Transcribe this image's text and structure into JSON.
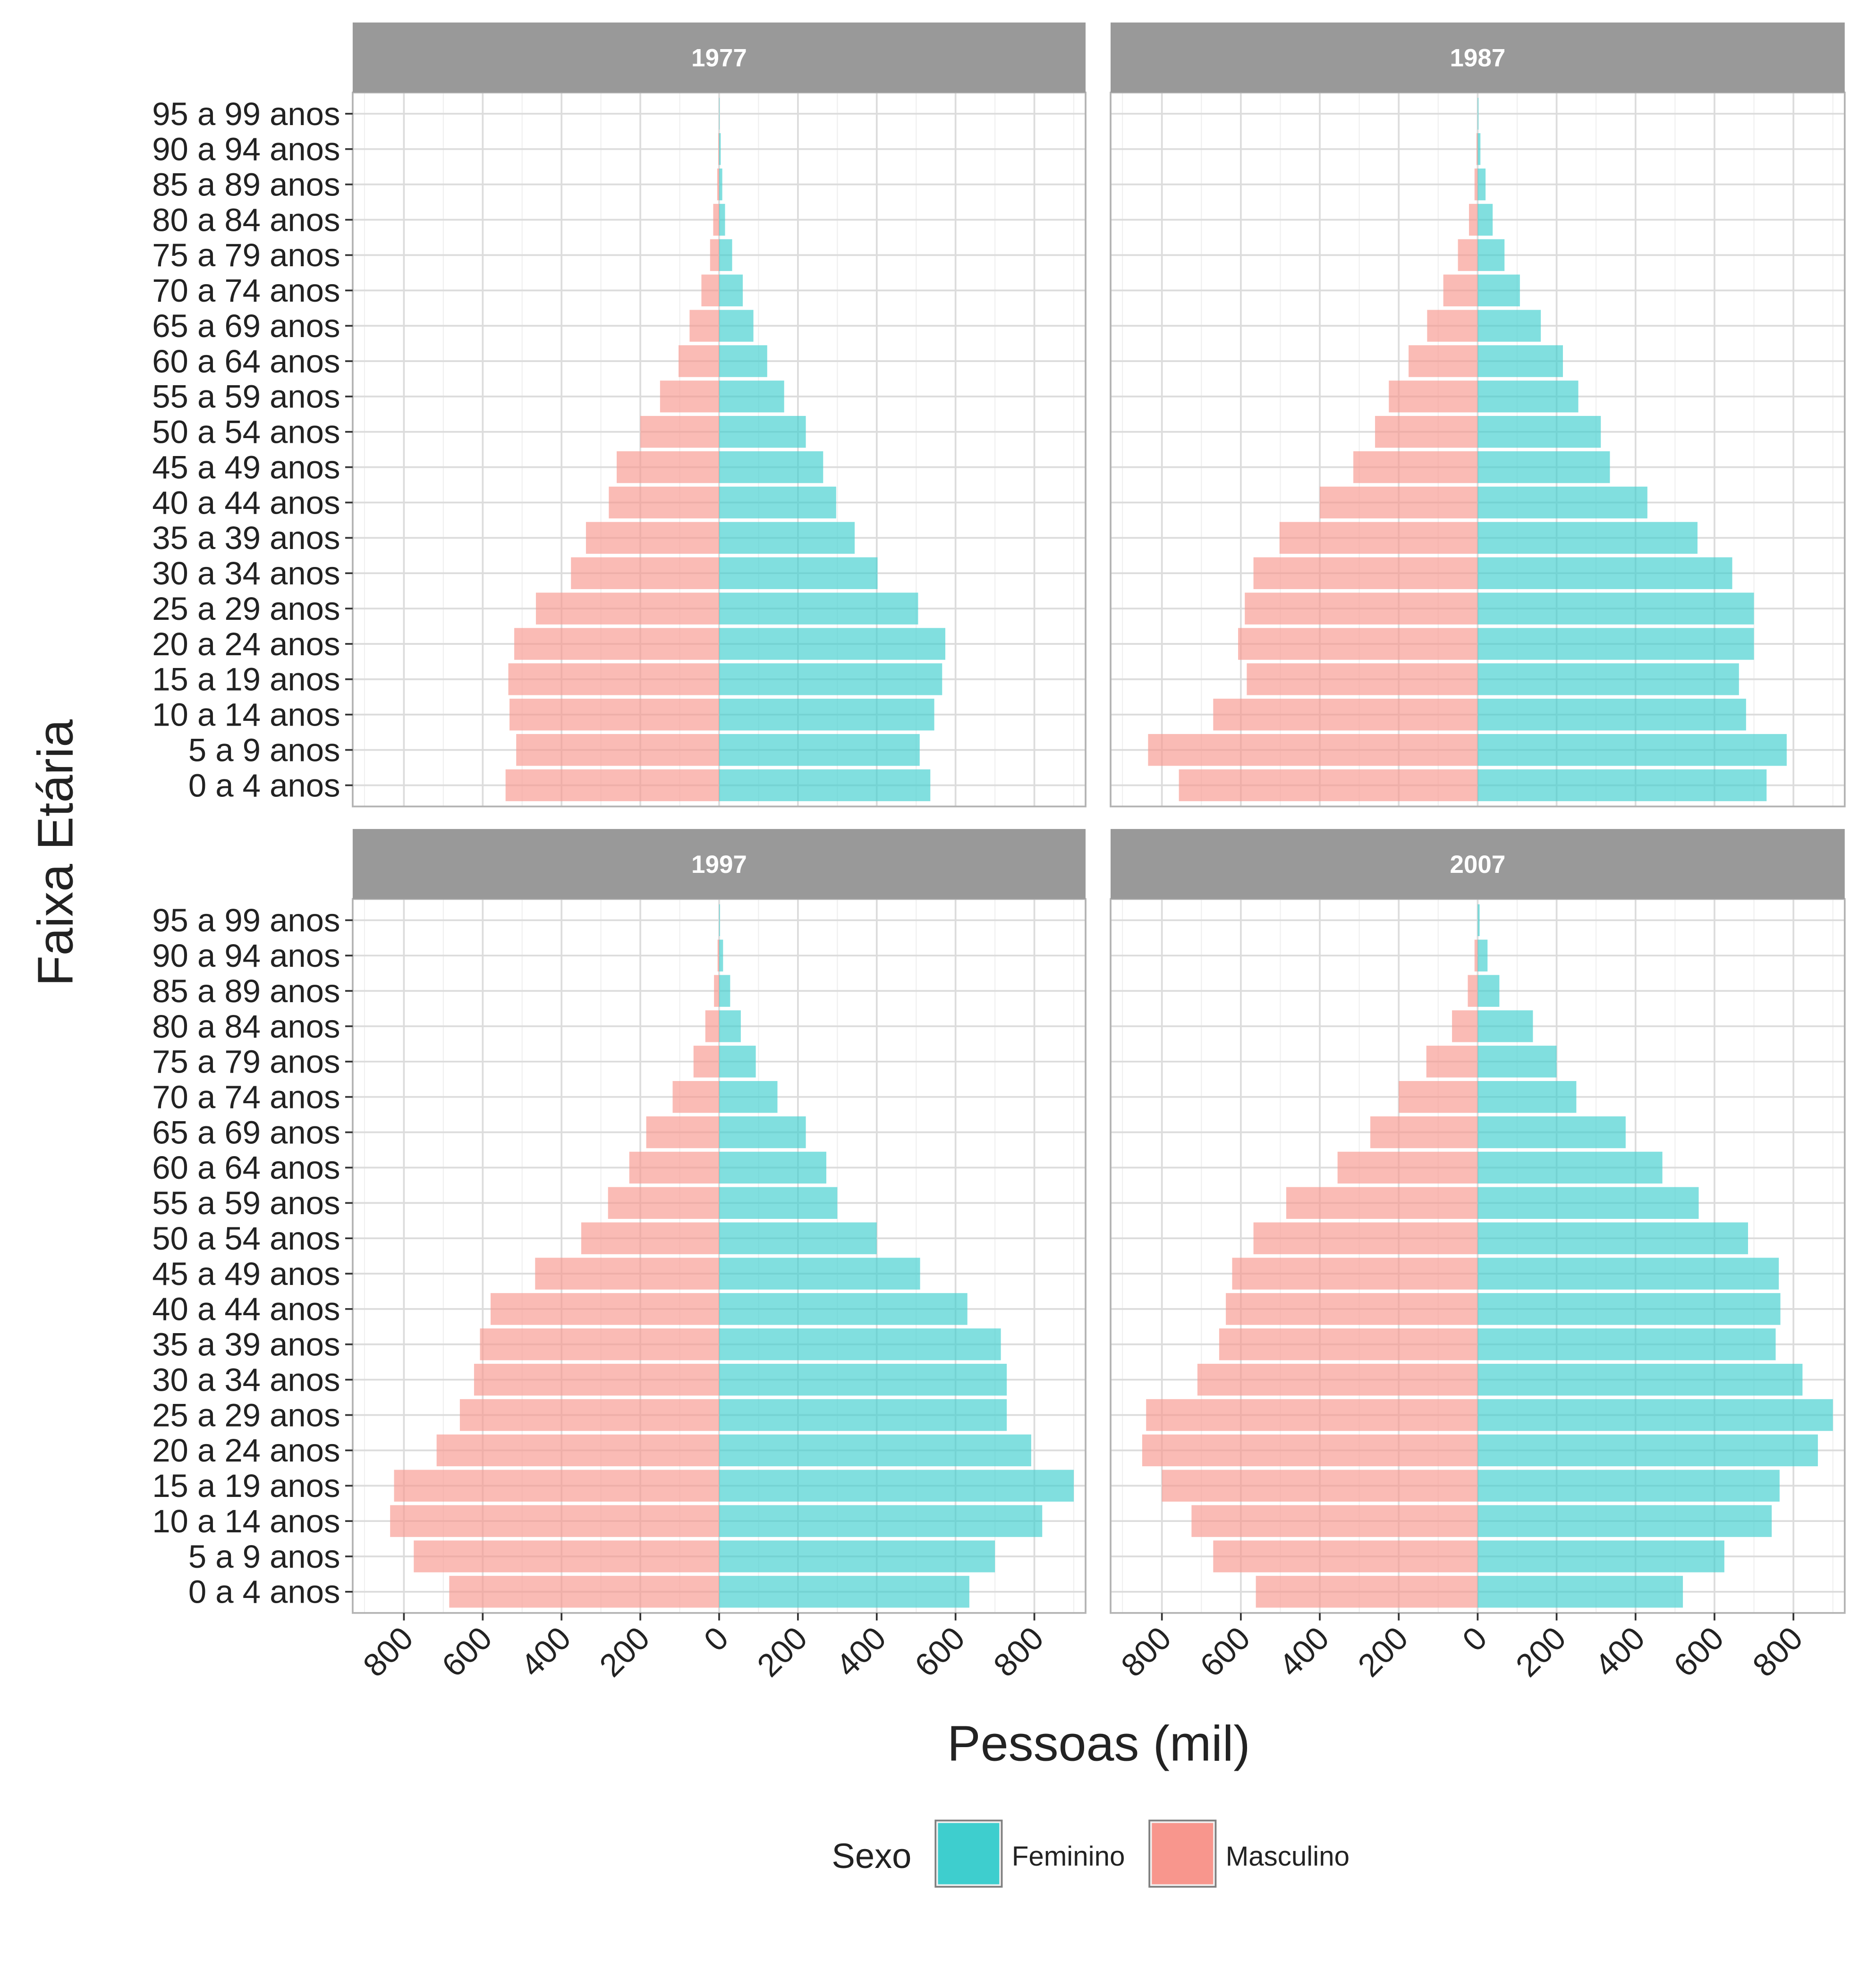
{
  "chart_data": {
    "type": "bar",
    "orientation": "horizontal",
    "layout": "population-pyramid-facets",
    "ylabel": "Faixa Etária",
    "xlabel": "Pessoas (mil)",
    "xlim": [
      -930,
      930
    ],
    "xticks": [
      -800,
      -600,
      -400,
      -200,
      0,
      200,
      400,
      600,
      800
    ],
    "xtick_labels": [
      "800",
      "600",
      "400",
      "200",
      "0",
      "200",
      "400",
      "600",
      "800"
    ],
    "grid": true,
    "legend_position": "bottom",
    "categories": [
      "95 a 99 anos",
      "90 a 94 anos",
      "85 a 89 anos",
      "80 a 84 anos",
      "75 a 79 anos",
      "70 a 74 anos",
      "65 a 69 anos",
      "60 a 64 anos",
      "55 a 59 anos",
      "50 a 54 anos",
      "45 a 49 anos",
      "40 a 44 anos",
      "35 a 39 anos",
      "30 a 34 anos",
      "25 a 29 anos",
      "20 a 24 anos",
      "15 a 19 anos",
      "10 a 14 anos",
      "5 a 9 anos ",
      "0 a 4 anos "
    ],
    "legend": {
      "title": "Sexo",
      "entries": [
        {
          "name": "Feminino",
          "color": "#3ECECE"
        },
        {
          "name": "Masculino",
          "color": "#F8968D"
        }
      ]
    },
    "colors": {
      "Feminino": "#3ECECE",
      "Masculino": "#F8968D",
      "strip": "#999999",
      "strip_text": "#ffffff",
      "panel_border": "#B3B3B3"
    },
    "panels": [
      {
        "title": "1977",
        "series": [
          {
            "name": "Feminino",
            "values": [
              1,
              4,
              8,
              15,
              33,
              60,
              87,
              122,
              165,
              220,
              264,
              297,
              344,
              402,
              505,
              574,
              566,
              546,
              509,
              536
            ]
          },
          {
            "name": "Masculino",
            "values": [
              0,
              2,
              5,
              15,
              23,
              45,
              75,
              103,
              150,
              200,
              260,
              280,
              338,
              376,
              465,
              520,
              535,
              532,
              515,
              542
            ]
          }
        ]
      },
      {
        "title": "1987",
        "series": [
          {
            "name": "Feminino",
            "values": [
              2,
              7,
              20,
              38,
              68,
              107,
              160,
              216,
              255,
              312,
              335,
              430,
              557,
              645,
              700,
              700,
              662,
              680,
              783,
              732
            ]
          },
          {
            "name": "Masculino",
            "values": [
              0,
              3,
              8,
              22,
              50,
              87,
              128,
              175,
              225,
              260,
              315,
              400,
              502,
              568,
              590,
              607,
              585,
              670,
              835,
              757
            ]
          }
        ]
      },
      {
        "title": "1997",
        "series": [
          {
            "name": "Feminino",
            "values": [
              2,
              10,
              28,
              55,
              93,
              148,
              220,
              272,
              300,
              400,
              510,
              630,
              715,
              730,
              730,
              792,
              900,
              820,
              700,
              635
            ]
          },
          {
            "name": "Masculino",
            "values": [
              0,
              4,
              13,
              35,
              65,
              118,
              185,
              228,
              282,
              350,
              467,
              580,
              607,
              622,
              658,
              717,
              825,
              835,
              775,
              685
            ]
          }
        ]
      },
      {
        "title": "2007",
        "series": [
          {
            "name": "Feminino",
            "values": [
              5,
              25,
              55,
              140,
              200,
              250,
              375,
              468,
              560,
              685,
              763,
              767,
              755,
              823,
              900,
              862,
              765,
              745,
              625,
              520
            ]
          },
          {
            "name": "Masculino",
            "values": [
              0,
              8,
              25,
              65,
              130,
              200,
              272,
              355,
              485,
              568,
              622,
              638,
              655,
              710,
              840,
              850,
              800,
              725,
              670,
              562
            ]
          }
        ]
      }
    ]
  }
}
